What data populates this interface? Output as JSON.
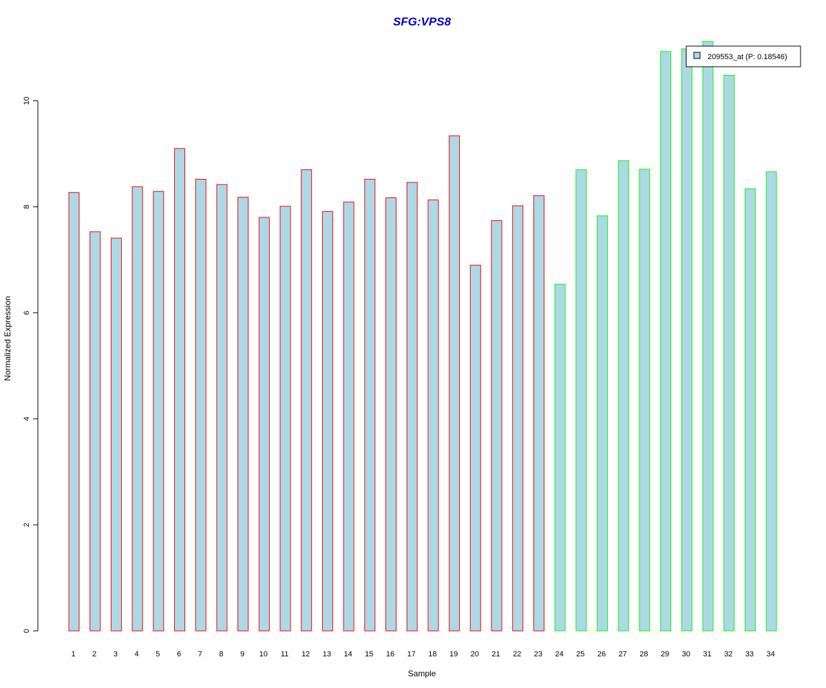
{
  "chart_data": {
    "type": "bar",
    "title": "SFG:VPS8",
    "xlabel": "Sample",
    "ylabel": "Normalized Expression",
    "ylim": [
      0,
      11.2
    ],
    "yticks": [
      "0",
      "2",
      "4",
      "6",
      "8",
      "10"
    ],
    "categories": [
      "1",
      "2",
      "3",
      "4",
      "5",
      "6",
      "7",
      "8",
      "9",
      "10",
      "11",
      "12",
      "13",
      "14",
      "15",
      "16",
      "17",
      "18",
      "19",
      "20",
      "21",
      "22",
      "23",
      "24",
      "25",
      "26",
      "27",
      "28",
      "29",
      "30",
      "31",
      "32",
      "33",
      "34"
    ],
    "series": [
      {
        "name": "209553_at (P: 0.18546)",
        "values": [
          8.27,
          7.53,
          7.41,
          8.38,
          8.29,
          9.1,
          8.52,
          8.42,
          8.18,
          7.8,
          8.01,
          8.7,
          7.91,
          8.09,
          8.52,
          8.17,
          8.46,
          8.13,
          9.34,
          6.9,
          7.74,
          8.02,
          8.21,
          6.54,
          8.7,
          7.83,
          8.87,
          8.71,
          10.93,
          10.98,
          11.12,
          10.48,
          8.34,
          8.66
        ]
      }
    ],
    "group_count_red": 23,
    "colors": {
      "bar_fill": "#add8e6",
      "group1_border": "#ff0000",
      "group2_border": "#00ff00",
      "title": "#0000cc",
      "axis": "#000000"
    },
    "legend": {
      "label": "209553_at (P: 0.18546)",
      "position": "top-right"
    },
    "grid": false
  }
}
